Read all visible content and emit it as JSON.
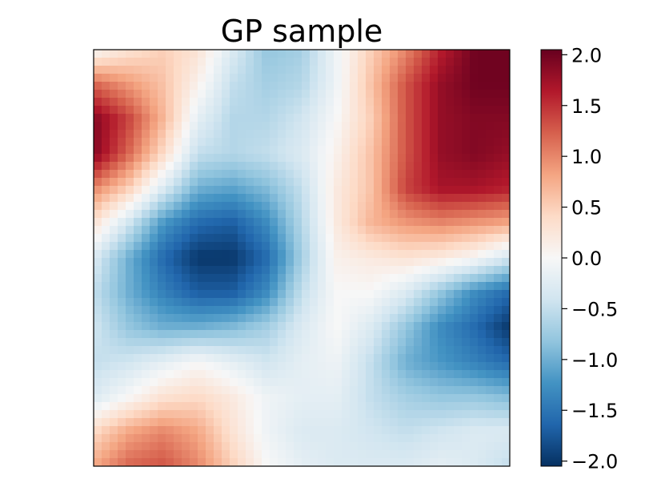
{
  "chart_data": {
    "type": "heatmap",
    "title": "GP sample",
    "xlabel": "",
    "ylabel": "",
    "colormap": "RdBu_r",
    "vmin": -2.05,
    "vmax": 2.05,
    "grid": false,
    "x_ticks": [],
    "y_ticks": [],
    "colorbar": {
      "ticks": [
        2.0,
        1.5,
        1.0,
        0.5,
        0.0,
        -0.5,
        -1.0,
        -1.5,
        -2.0
      ],
      "tick_labels": [
        "2.0",
        "1.5",
        "1.0",
        "0.5",
        "0.0",
        "−0.5",
        "−1.0",
        "−1.5",
        "−2.0"
      ]
    },
    "grid_size": [
      13,
      13
    ],
    "values": [
      [
        0.0,
        0.3,
        0.5,
        0.3,
        -0.3,
        -0.8,
        -0.7,
        -0.1,
        0.5,
        1.0,
        1.6,
        2.0,
        2.0
      ],
      [
        1.2,
        0.9,
        0.6,
        0.1,
        -0.5,
        -0.7,
        -0.6,
        -0.1,
        0.6,
        1.3,
        1.8,
        2.0,
        2.0
      ],
      [
        1.9,
        1.4,
        0.7,
        -0.2,
        -0.6,
        -0.6,
        -0.4,
        0.0,
        0.5,
        1.3,
        1.8,
        1.9,
        1.9
      ],
      [
        1.9,
        1.2,
        0.4,
        -0.5,
        -0.6,
        -0.5,
        -0.3,
        0.1,
        0.6,
        1.3,
        1.8,
        1.9,
        1.8
      ],
      [
        1.0,
        0.5,
        -0.3,
        -1.0,
        -1.1,
        -0.9,
        -0.5,
        0.2,
        0.6,
        1.4,
        1.7,
        1.7,
        1.6
      ],
      [
        0.3,
        -0.4,
        -1.2,
        -1.6,
        -1.7,
        -1.3,
        -0.6,
        0.2,
        0.7,
        0.9,
        1.0,
        0.9,
        0.8
      ],
      [
        -0.3,
        -1.0,
        -1.6,
        -2.0,
        -2.0,
        -1.6,
        -0.7,
        0.1,
        0.2,
        0.3,
        0.2,
        0.0,
        -0.4
      ],
      [
        -0.5,
        -1.0,
        -1.4,
        -1.7,
        -1.7,
        -1.3,
        -0.5,
        0.0,
        0.0,
        -0.3,
        -0.8,
        -1.3,
        -1.6
      ],
      [
        -0.4,
        -0.8,
        -1.0,
        -1.0,
        -0.9,
        -0.7,
        -0.3,
        0.0,
        -0.3,
        -0.8,
        -1.3,
        -1.6,
        -2.0
      ],
      [
        -0.5,
        -0.4,
        -0.2,
        0.0,
        -0.2,
        -0.4,
        -0.2,
        -0.1,
        -0.5,
        -1.0,
        -1.2,
        -1.4,
        -1.6
      ],
      [
        -0.3,
        0.0,
        0.3,
        0.4,
        0.2,
        -0.1,
        -0.2,
        -0.2,
        -0.5,
        -0.7,
        -0.8,
        -0.8,
        -0.9
      ],
      [
        0.4,
        0.8,
        1.0,
        0.8,
        0.3,
        -0.1,
        -0.3,
        -0.3,
        -0.4,
        -0.5,
        -0.4,
        -0.3,
        -0.3
      ],
      [
        0.8,
        1.2,
        1.3,
        1.0,
        0.5,
        0.0,
        -0.2,
        -0.3,
        -0.3,
        -0.3,
        -0.2,
        -0.3,
        -0.5
      ]
    ]
  }
}
